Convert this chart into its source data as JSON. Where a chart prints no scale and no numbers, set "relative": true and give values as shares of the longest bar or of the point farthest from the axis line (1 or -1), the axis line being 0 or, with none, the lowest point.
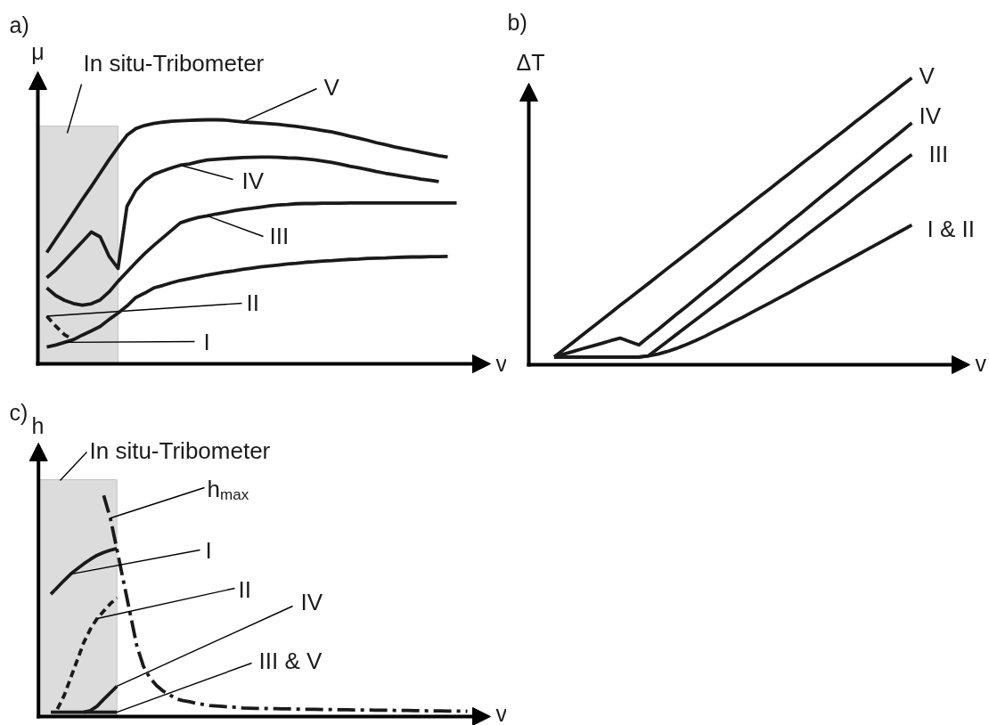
{
  "chart_data": [
    {
      "type": "line",
      "title": "a)",
      "xlabel": "v",
      "ylabel": "μ",
      "relative": true,
      "annotations": [
        "In situ-Tribometer"
      ],
      "categories": [
        null,
        null,
        null,
        null,
        null,
        null,
        null,
        null,
        null,
        null,
        null,
        null,
        null,
        null,
        null,
        null,
        null,
        null,
        null,
        null,
        null,
        null,
        null,
        null,
        null,
        null,
        null,
        null,
        null,
        null,
        null,
        null,
        null,
        null,
        null,
        null,
        null,
        null,
        null,
        null,
        null,
        null,
        null,
        null,
        null,
        null,
        null,
        null
      ],
      "series": [
        {
          "name": "V",
          "color": "#1a1a1a",
          "values": [
            null,
            0.456,
            0.511,
            0.564,
            0.619,
            0.674,
            0.727,
            0.782,
            0.837,
            0.888,
            0.937,
            0.964,
            0.977,
            0.985,
            0.99,
            0.994,
            0.996,
            0.998,
            0.999,
            1.0,
            1.0,
            0.999,
            0.995,
            0.991,
            0.989,
            0.987,
            0.984,
            0.981,
            0.977,
            0.973,
            0.968,
            0.962,
            0.956,
            0.95,
            0.942,
            0.933,
            0.925,
            0.916,
            0.906,
            0.898,
            0.889,
            0.882,
            0.875,
            0.867,
            0.86,
            0.853,
            0.847,
            null
          ]
        },
        {
          "name": "IV",
          "color": "#1a1a1a",
          "values": [
            null,
            0.353,
            0.384,
            0.423,
            0.462,
            0.501,
            0.54,
            0.52,
            0.44,
            0.391,
            0.645,
            0.711,
            0.75,
            0.776,
            0.79,
            0.803,
            0.814,
            0.819,
            0.828,
            0.835,
            0.838,
            0.841,
            0.843,
            0.845,
            0.846,
            0.847,
            0.847,
            0.846,
            0.844,
            0.843,
            0.84,
            0.836,
            0.831,
            0.825,
            0.818,
            0.81,
            0.803,
            0.796,
            0.788,
            0.781,
            0.775,
            0.769,
            0.763,
            0.757,
            0.752,
            0.747,
            null,
            null
          ]
        },
        {
          "name": "III",
          "color": "#1a1a1a",
          "values": [
            null,
            0.311,
            0.28,
            0.26,
            0.247,
            0.24,
            0.246,
            0.262,
            0.295,
            0.338,
            0.377,
            0.415,
            0.452,
            0.485,
            0.516,
            0.547,
            0.578,
            0.59,
            0.6,
            0.606,
            0.614,
            0.62,
            0.627,
            0.633,
            0.637,
            0.642,
            0.647,
            0.651,
            0.653,
            0.656,
            0.657,
            0.657,
            0.658,
            0.658,
            0.658,
            0.659,
            0.659,
            0.659,
            0.659,
            0.659,
            0.659,
            0.659,
            0.659,
            0.659,
            0.659,
            0.659,
            0.659,
            0.659
          ]
        },
        {
          "name": "II",
          "color": "#1a1a1a",
          "line_style": "dashed",
          "values": [
            null,
            0.195,
            0.155,
            0.119,
            0.099,
            null,
            null,
            null,
            null,
            null,
            null,
            null,
            null,
            null,
            null,
            null,
            null,
            null,
            null,
            null,
            null,
            null,
            null,
            null,
            null,
            null,
            null,
            null,
            null,
            null,
            null,
            null,
            null,
            null,
            null,
            null,
            null,
            null,
            null,
            null,
            null,
            null,
            null,
            null,
            null,
            null,
            null,
            null
          ]
        },
        {
          "name": "I",
          "color": "#1a1a1a",
          "values": [
            null,
            0.069,
            0.077,
            0.088,
            0.099,
            0.118,
            0.135,
            0.153,
            0.182,
            0.208,
            0.237,
            0.272,
            0.29,
            0.311,
            0.321,
            0.332,
            0.342,
            0.349,
            0.356,
            0.364,
            0.37,
            0.376,
            0.381,
            0.387,
            0.392,
            0.397,
            0.401,
            0.405,
            0.409,
            0.412,
            0.416,
            0.418,
            0.421,
            0.423,
            0.426,
            0.428,
            0.429,
            0.432,
            0.433,
            0.434,
            0.436,
            0.437,
            0.438,
            0.438,
            0.439,
            0.439,
            0.44,
            null
          ]
        }
      ]
    },
    {
      "type": "line",
      "title": "b)",
      "xlabel": "v",
      "ylabel": "ΔT",
      "relative": true,
      "categories": [
        null,
        null,
        null,
        null,
        null,
        null,
        null,
        null,
        null,
        null,
        null,
        null,
        null,
        null,
        null,
        null,
        null,
        null,
        null,
        null,
        null,
        null,
        null,
        null,
        null,
        null,
        null,
        null,
        null,
        null,
        null,
        null,
        null,
        null,
        null,
        null,
        null,
        null,
        null
      ],
      "series": [
        {
          "name": "V",
          "color": "#1a1a1a",
          "values": [
            0.027,
            0.053,
            0.078,
            0.104,
            0.13,
            0.155,
            0.181,
            0.207,
            0.232,
            0.258,
            0.283,
            0.309,
            0.335,
            0.36,
            0.386,
            0.411,
            0.437,
            0.463,
            0.488,
            0.514,
            0.539,
            0.565,
            0.591,
            0.616,
            0.642,
            0.667,
            0.693,
            0.719,
            0.744,
            0.77,
            0.795,
            0.821,
            0.847,
            0.872,
            0.898,
            0.923,
            0.949,
            0.975,
            1.0
          ]
        },
        {
          "name": "IV",
          "color": "#1a1a1a",
          "values": [
            0.027,
            0.037,
            0.046,
            0.056,
            0.065,
            0.074,
            0.084,
            0.093,
            0.081,
            0.069,
            0.096,
            0.122,
            0.149,
            0.176,
            0.202,
            0.229,
            0.256,
            0.282,
            0.309,
            0.336,
            0.362,
            0.389,
            0.416,
            0.442,
            0.469,
            0.496,
            0.522,
            0.549,
            0.576,
            0.603,
            0.629,
            0.656,
            0.683,
            0.709,
            0.736,
            0.763,
            0.789,
            0.816,
            0.843
          ]
        },
        {
          "name": "III",
          "color": "#1a1a1a",
          "values": [
            0.027,
            0.027,
            0.027,
            0.027,
            0.027,
            0.027,
            0.027,
            0.027,
            0.027,
            0.027,
            0.031,
            0.056,
            0.081,
            0.106,
            0.131,
            0.156,
            0.181,
            0.206,
            0.231,
            0.256,
            0.282,
            0.307,
            0.332,
            0.357,
            0.382,
            0.407,
            0.432,
            0.457,
            0.482,
            0.507,
            0.532,
            0.557,
            0.583,
            0.608,
            0.633,
            0.658,
            0.683,
            0.708,
            0.733
          ]
        },
        {
          "name": "I & II",
          "color": "#1a1a1a",
          "values": [
            0.027,
            0.027,
            0.027,
            0.027,
            0.027,
            0.027,
            0.027,
            0.027,
            0.027,
            0.027,
            0.031,
            0.037,
            0.046,
            0.057,
            0.07,
            0.084,
            0.099,
            0.116,
            0.132,
            0.149,
            0.165,
            0.183,
            0.2,
            0.217,
            0.235,
            0.252,
            0.271,
            0.289,
            0.307,
            0.325,
            0.343,
            0.361,
            0.379,
            0.397,
            0.415,
            0.433,
            0.451,
            0.469,
            0.487
          ]
        }
      ]
    },
    {
      "type": "line",
      "title": "c)",
      "xlabel": "v",
      "ylabel": "h",
      "relative": true,
      "annotations": [
        "In situ-Tribometer"
      ],
      "categories": [
        null,
        null,
        null,
        null,
        null,
        null,
        null,
        null,
        null,
        null,
        null,
        null,
        null,
        null,
        null,
        null,
        null,
        null,
        null,
        null,
        null,
        null,
        null,
        null,
        null,
        null,
        null,
        null,
        null,
        null,
        null,
        null,
        null,
        null,
        null,
        null,
        null,
        null,
        null,
        null,
        null,
        null,
        null,
        null,
        null,
        null,
        null,
        null,
        null,
        null,
        null,
        null,
        null,
        null,
        null,
        null,
        null,
        null,
        null,
        null,
        null,
        null,
        null,
        null,
        null,
        null
      ],
      "series": [
        {
          "name": "h$_{max}$",
          "color": "#1a1a1a",
          "line_style": "dashdot",
          "values": [
            null,
            null,
            null,
            null,
            null,
            null,
            null,
            null,
            null,
            null,
            1.0,
            0.897,
            0.756,
            0.611,
            0.466,
            0.321,
            0.228,
            0.174,
            0.14,
            0.115,
            0.098,
            0.079,
            0.072,
            0.067,
            0.06,
            0.055,
            0.05,
            0.048,
            0.046,
            0.043,
            0.042,
            0.039,
            0.038,
            0.037,
            0.037,
            0.036,
            0.036,
            0.035,
            0.035,
            0.034,
            0.033,
            0.033,
            0.033,
            0.032,
            0.032,
            0.031,
            0.031,
            0.031,
            0.03,
            0.03,
            0.03,
            0.029,
            0.029,
            0.029,
            0.028,
            0.028,
            0.028,
            0.027,
            0.027,
            0.026,
            0.026,
            0.026,
            0.025,
            0.025,
            0.025,
            0.024
          ]
        },
        {
          "name": "I",
          "color": "#1a1a1a",
          "values": [
            null,
            null,
            0.553,
            0.584,
            0.615,
            0.644,
            0.668,
            0.691,
            0.711,
            0.729,
            0.742,
            0.752,
            0.76,
            null,
            null,
            null,
            null,
            null,
            null,
            null,
            null,
            null,
            null,
            null,
            null,
            null,
            null,
            null,
            null,
            null,
            null,
            null,
            null,
            null,
            null,
            null,
            null,
            null,
            null,
            null,
            null,
            null,
            null,
            null,
            null,
            null,
            null,
            null,
            null,
            null,
            null,
            null,
            null,
            null,
            null,
            null,
            null,
            null,
            null,
            null,
            null,
            null,
            null,
            null,
            null,
            null
          ]
        },
        {
          "name": "II",
          "color": "#1a1a1a",
          "line_style": "dashed",
          "values": [
            null,
            null,
            null,
            0.034,
            0.094,
            0.174,
            0.255,
            0.336,
            0.396,
            0.443,
            0.477,
            0.51,
            0.537,
            null,
            null,
            null,
            null,
            null,
            null,
            null,
            null,
            null,
            null,
            null,
            null,
            null,
            null,
            null,
            null,
            null,
            null,
            null,
            null,
            null,
            null,
            null,
            null,
            null,
            null,
            null,
            null,
            null,
            null,
            null,
            null,
            null,
            null,
            null,
            null,
            null,
            null,
            null,
            null,
            null,
            null,
            null,
            null,
            null,
            null,
            null,
            null,
            null,
            null,
            null,
            null,
            null
          ]
        },
        {
          "name": "IV",
          "color": "#1a1a1a",
          "values": [
            null,
            null,
            null,
            null,
            null,
            null,
            null,
            0.02,
            0.027,
            0.047,
            0.078,
            0.107,
            0.137,
            null,
            null,
            null,
            null,
            null,
            null,
            null,
            null,
            null,
            null,
            null,
            null,
            null,
            null,
            null,
            null,
            null,
            null,
            null,
            null,
            null,
            null,
            null,
            null,
            null,
            null,
            null,
            null,
            null,
            null,
            null,
            null,
            null,
            null,
            null,
            null,
            null,
            null,
            null,
            null,
            null,
            null,
            null,
            null,
            null,
            null,
            null,
            null,
            null,
            null,
            null,
            null,
            null
          ]
        },
        {
          "name": "III & V",
          "color": "#1a1a1a",
          "values": [
            null,
            null,
            0.02,
            0.02,
            0.02,
            0.02,
            0.02,
            0.02,
            0.02,
            0.02,
            0.02,
            0.02,
            0.02,
            null,
            null,
            null,
            null,
            null,
            null,
            null,
            null,
            null,
            null,
            null,
            null,
            null,
            null,
            null,
            null,
            null,
            null,
            null,
            null,
            null,
            null,
            null,
            null,
            null,
            null,
            null,
            null,
            null,
            null,
            null,
            null,
            null,
            null,
            null,
            null,
            null,
            null,
            null,
            null,
            null,
            null,
            null,
            null,
            null,
            null,
            null,
            null,
            null,
            null,
            null,
            null,
            null
          ]
        }
      ]
    }
  ]
}
